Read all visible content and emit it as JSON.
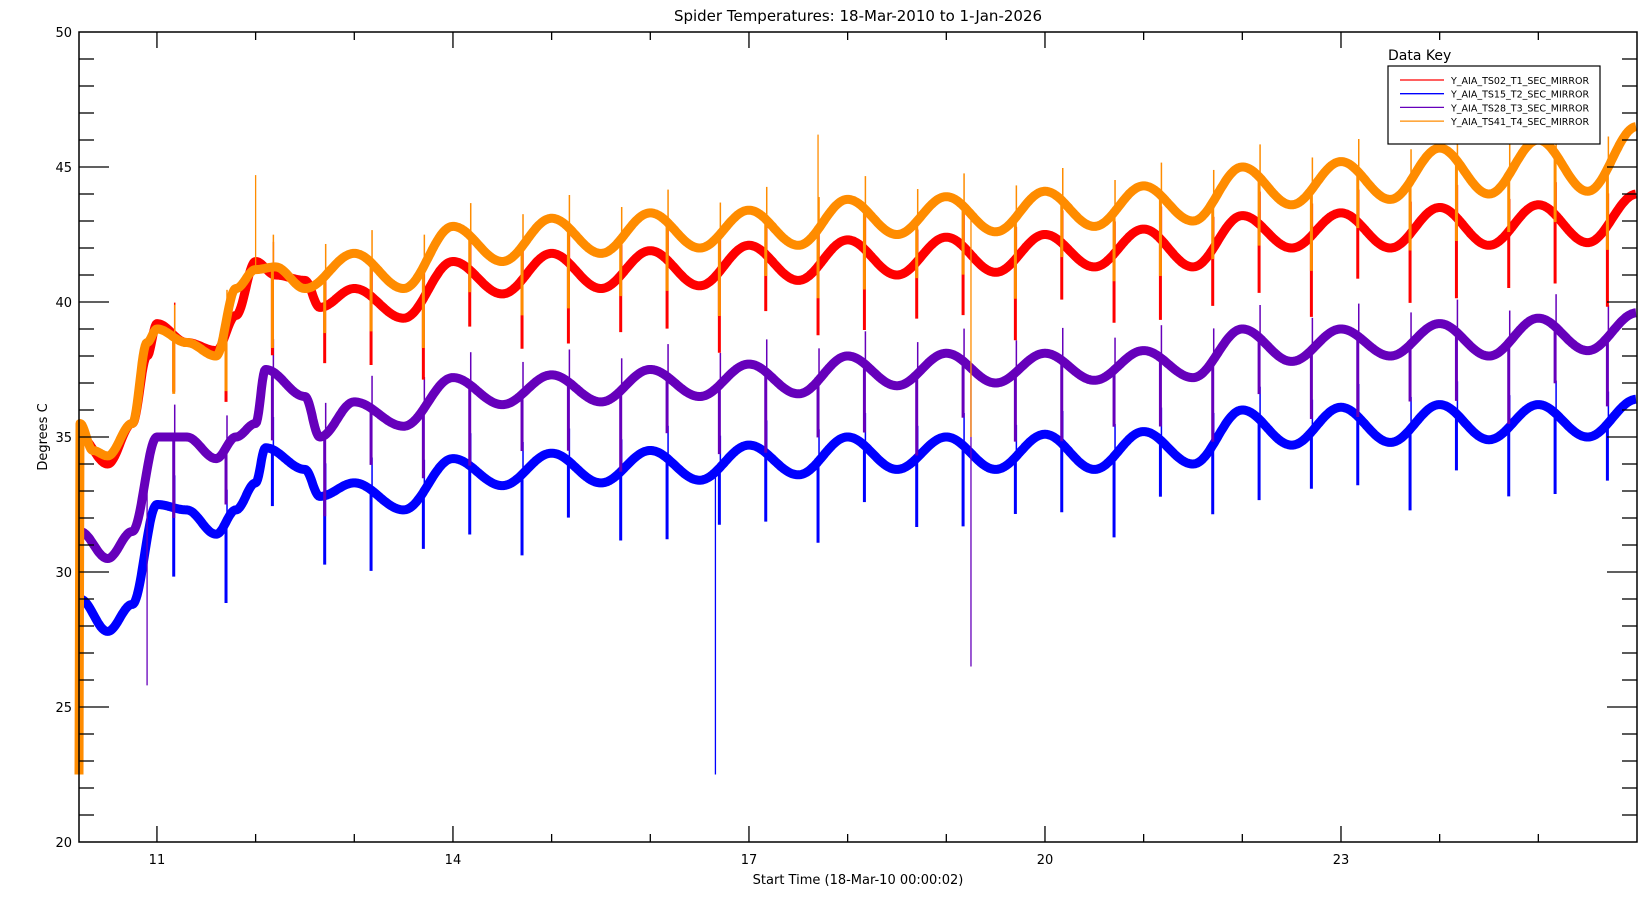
{
  "chart_data": {
    "type": "line",
    "title": "Spider Temperatures: 18-Mar-2010 to 1-Jan-2026",
    "xlabel": "Start Time (18-Mar-10 00:00:02)",
    "ylabel": "Degrees C",
    "xlim": [
      10.21,
      26.0
    ],
    "ylim": [
      20,
      50
    ],
    "x_ticks": [
      11,
      14,
      17,
      20,
      23
    ],
    "x_tick_labels": [
      "11",
      "14",
      "17",
      "20",
      "23"
    ],
    "y_ticks": [
      20,
      25,
      30,
      35,
      40,
      45,
      50
    ],
    "y_tick_labels": [
      "20",
      "25",
      "30",
      "35",
      "40",
      "45",
      "50"
    ],
    "legend": {
      "title": "Data Key",
      "placement": "top-right"
    },
    "grid": false,
    "series": [
      {
        "name": "Y_AIA_TS02_T1_SEC_MIRROR",
        "color": "#ff0000",
        "points": [
          [
            10.22,
            35
          ],
          [
            10.5,
            34
          ],
          [
            10.75,
            35.5
          ],
          [
            10.9,
            38
          ],
          [
            11.0,
            39.2
          ],
          [
            11.3,
            38.5
          ],
          [
            11.6,
            38.2
          ],
          [
            11.8,
            39.5
          ],
          [
            12.0,
            41.5
          ],
          [
            12.2,
            41
          ],
          [
            12.5,
            40.8
          ],
          [
            12.65,
            39.8
          ],
          [
            13.0,
            40.5
          ],
          [
            13.5,
            39.4
          ],
          [
            14.0,
            41.5
          ],
          [
            14.5,
            40.3
          ],
          [
            15.0,
            41.8
          ],
          [
            15.5,
            40.5
          ],
          [
            16.0,
            41.9
          ],
          [
            16.5,
            40.6
          ],
          [
            17.0,
            42.1
          ],
          [
            17.5,
            40.8
          ],
          [
            18.0,
            42.3
          ],
          [
            18.5,
            41.0
          ],
          [
            19.0,
            42.4
          ],
          [
            19.5,
            41.1
          ],
          [
            20.0,
            42.5
          ],
          [
            20.5,
            41.3
          ],
          [
            21.0,
            42.7
          ],
          [
            21.5,
            41.3
          ],
          [
            22.0,
            43.2
          ],
          [
            22.5,
            42.0
          ],
          [
            23.0,
            43.3
          ],
          [
            23.5,
            42.0
          ],
          [
            24.0,
            43.5
          ],
          [
            24.5,
            42.1
          ],
          [
            25.0,
            43.6
          ],
          [
            25.5,
            42.2
          ],
          [
            26.0,
            44.0
          ]
        ]
      },
      {
        "name": "Y_AIA_TS15_T2_SEC_MIRROR",
        "color": "#0000ff",
        "points": [
          [
            10.22,
            29
          ],
          [
            10.5,
            27.8
          ],
          [
            10.75,
            28.8
          ],
          [
            11.0,
            32.5
          ],
          [
            11.3,
            32.3
          ],
          [
            11.6,
            31.4
          ],
          [
            11.8,
            32.3
          ],
          [
            12.0,
            33.3
          ],
          [
            12.1,
            34.6
          ],
          [
            12.5,
            33.8
          ],
          [
            12.65,
            32.8
          ],
          [
            13.0,
            33.3
          ],
          [
            13.5,
            32.3
          ],
          [
            14.0,
            34.2
          ],
          [
            14.5,
            33.2
          ],
          [
            15.0,
            34.4
          ],
          [
            15.5,
            33.3
          ],
          [
            16.0,
            34.5
          ],
          [
            16.5,
            33.4
          ],
          [
            17.0,
            34.7
          ],
          [
            17.5,
            33.6
          ],
          [
            18.0,
            35.0
          ],
          [
            18.5,
            33.8
          ],
          [
            19.0,
            35.0
          ],
          [
            19.5,
            33.8
          ],
          [
            20.0,
            35.1
          ],
          [
            20.5,
            33.8
          ],
          [
            21.0,
            35.2
          ],
          [
            21.5,
            34.0
          ],
          [
            22.0,
            36.0
          ],
          [
            22.5,
            34.7
          ],
          [
            23.0,
            36.1
          ],
          [
            23.5,
            34.8
          ],
          [
            24.0,
            36.2
          ],
          [
            24.5,
            34.9
          ],
          [
            25.0,
            36.2
          ],
          [
            25.5,
            35.0
          ],
          [
            26.0,
            36.4
          ]
        ]
      },
      {
        "name": "Y_AIA_TS28_T3_SEC_MIRROR",
        "color": "#6600bb",
        "points": [
          [
            10.22,
            31.5
          ],
          [
            10.5,
            30.5
          ],
          [
            10.75,
            31.5
          ],
          [
            11.0,
            35.0
          ],
          [
            11.3,
            35.0
          ],
          [
            11.6,
            34.2
          ],
          [
            11.8,
            35.0
          ],
          [
            12.0,
            35.5
          ],
          [
            12.1,
            37.5
          ],
          [
            12.5,
            36.5
          ],
          [
            12.65,
            35.0
          ],
          [
            13.0,
            36.3
          ],
          [
            13.5,
            35.4
          ],
          [
            14.0,
            37.2
          ],
          [
            14.5,
            36.2
          ],
          [
            15.0,
            37.3
          ],
          [
            15.5,
            36.3
          ],
          [
            16.0,
            37.5
          ],
          [
            16.5,
            36.5
          ],
          [
            17.0,
            37.7
          ],
          [
            17.5,
            36.6
          ],
          [
            18.0,
            38.0
          ],
          [
            18.5,
            36.9
          ],
          [
            19.0,
            38.1
          ],
          [
            19.5,
            37.0
          ],
          [
            20.0,
            38.1
          ],
          [
            20.5,
            37.1
          ],
          [
            21.0,
            38.2
          ],
          [
            21.5,
            37.2
          ],
          [
            22.0,
            39.0
          ],
          [
            22.5,
            37.8
          ],
          [
            23.0,
            39.0
          ],
          [
            23.5,
            38.0
          ],
          [
            24.0,
            39.2
          ],
          [
            24.5,
            38.0
          ],
          [
            25.0,
            39.4
          ],
          [
            25.5,
            38.2
          ],
          [
            26.0,
            39.6
          ]
        ]
      },
      {
        "name": "Y_AIA_TS41_T4_SEC_MIRROR",
        "color": "#ff8c00",
        "points": [
          [
            10.21,
            22.5
          ],
          [
            10.22,
            35.5
          ],
          [
            10.35,
            34.5
          ],
          [
            10.5,
            34.3
          ],
          [
            10.75,
            35.5
          ],
          [
            10.9,
            38.5
          ],
          [
            11.0,
            39.0
          ],
          [
            11.3,
            38.5
          ],
          [
            11.6,
            38.0
          ],
          [
            11.8,
            40.5
          ],
          [
            12.0,
            41.2
          ],
          [
            12.2,
            41.3
          ],
          [
            12.5,
            40.5
          ],
          [
            13.0,
            41.8
          ],
          [
            13.5,
            40.5
          ],
          [
            14.0,
            42.8
          ],
          [
            14.5,
            41.5
          ],
          [
            15.0,
            43.1
          ],
          [
            15.5,
            41.8
          ],
          [
            16.0,
            43.3
          ],
          [
            16.5,
            42.0
          ],
          [
            17.0,
            43.4
          ],
          [
            17.5,
            42.1
          ],
          [
            18.0,
            43.8
          ],
          [
            18.5,
            42.5
          ],
          [
            19.0,
            43.9
          ],
          [
            19.5,
            42.6
          ],
          [
            20.0,
            44.1
          ],
          [
            20.5,
            42.8
          ],
          [
            21.0,
            44.3
          ],
          [
            21.5,
            43.0
          ],
          [
            22.0,
            45.0
          ],
          [
            22.5,
            43.6
          ],
          [
            23.0,
            45.2
          ],
          [
            23.5,
            43.8
          ],
          [
            24.0,
            45.7
          ],
          [
            24.5,
            44.0
          ],
          [
            25.0,
            46.0
          ],
          [
            25.5,
            44.1
          ],
          [
            26.0,
            46.5
          ]
        ]
      }
    ],
    "eclipse_dip_years": [
      11.17,
      11.7,
      12.17,
      12.7,
      13.17,
      13.7,
      14.17,
      14.7,
      15.17,
      15.7,
      16.17,
      16.7,
      17.17,
      17.7,
      18.17,
      18.7,
      19.17,
      19.7,
      20.17,
      20.7,
      21.17,
      21.7,
      22.17,
      22.7,
      23.17,
      23.7,
      24.17,
      24.7,
      25.17,
      25.7
    ],
    "eclipse_dip_depth": 3,
    "notable_spikes": [
      {
        "series": 1,
        "x": 16.66,
        "to": 22.5
      },
      {
        "series": 2,
        "x": 19.25,
        "to": 26.5
      },
      {
        "series": 3,
        "x": 19.25,
        "to": 35.0
      },
      {
        "series": 2,
        "x": 10.9,
        "to": 25.8
      },
      {
        "series": 3,
        "x": 12.0,
        "to": 44.7
      },
      {
        "series": 3,
        "x": 17.7,
        "to": 46.2
      }
    ]
  }
}
